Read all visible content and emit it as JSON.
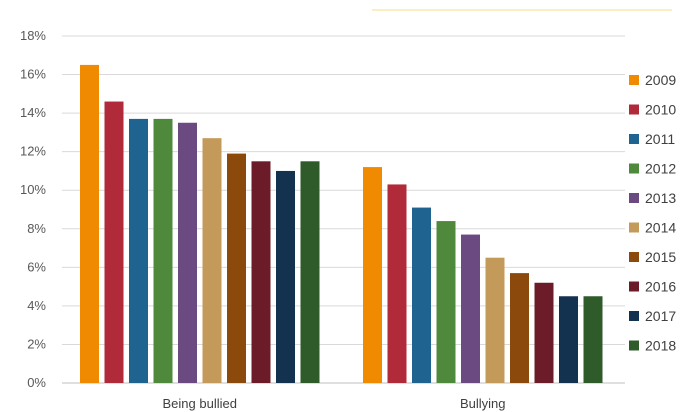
{
  "chart_data": {
    "type": "bar",
    "categories": [
      "Being bullied",
      "Bullying"
    ],
    "series": [
      {
        "name": "2009",
        "color": "#f08a00",
        "values": [
          16.5,
          11.2
        ]
      },
      {
        "name": "2010",
        "color": "#b02a3a",
        "values": [
          14.6,
          10.3
        ]
      },
      {
        "name": "2011",
        "color": "#1f6391",
        "values": [
          13.7,
          9.1
        ]
      },
      {
        "name": "2012",
        "color": "#4f8a3c",
        "values": [
          13.7,
          8.4
        ]
      },
      {
        "name": "2013",
        "color": "#6a4a80",
        "values": [
          13.5,
          7.7
        ]
      },
      {
        "name": "2014",
        "color": "#c49a5a",
        "values": [
          12.7,
          6.5
        ]
      },
      {
        "name": "2015",
        "color": "#8b4a0b",
        "values": [
          11.9,
          5.7
        ]
      },
      {
        "name": "2016",
        "color": "#6b1c28",
        "values": [
          11.5,
          5.2
        ]
      },
      {
        "name": "2017",
        "color": "#13324f",
        "values": [
          11.0,
          4.5
        ]
      },
      {
        "name": "2018",
        "color": "#2f5a2a",
        "values": [
          11.5,
          4.5
        ]
      }
    ],
    "ylim": [
      0,
      18
    ],
    "yticks": [
      0,
      2,
      4,
      6,
      8,
      10,
      12,
      14,
      16,
      18
    ],
    "ytick_labels": [
      "0%",
      "2%",
      "4%",
      "6%",
      "8%",
      "10%",
      "12%",
      "14%",
      "16%",
      "18%"
    ],
    "grid": true,
    "legend_position": "right"
  }
}
